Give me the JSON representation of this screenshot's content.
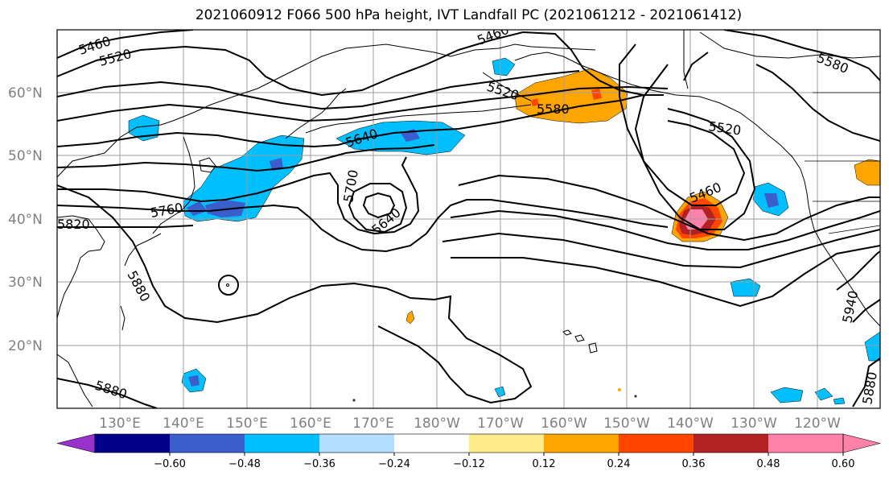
{
  "title": "2021060912 F066 500 hPa height, IVT Landfall PC (2021061212 - 2021061412)",
  "lat_labels": [
    "60°N",
    "50°N",
    "40°N",
    "30°N",
    "20°N"
  ],
  "lon_labels": [
    "130°E",
    "140°E",
    "150°E",
    "160°E",
    "170°E",
    "180°W",
    "170°W",
    "160°W",
    "150°W",
    "140°W",
    "130°W",
    "120°W"
  ],
  "contour_labels": [
    "5460",
    "5520",
    "5460",
    "5520",
    "5580",
    "5580",
    "5640",
    "5520",
    "5700",
    "5760",
    "5820",
    "5640",
    "5460",
    "5880",
    "5880",
    "5940",
    "5880"
  ],
  "colorbar": {
    "ticks": [
      "−0.60",
      "−0.48",
      "−0.36",
      "−0.24",
      "−0.12",
      "0.12",
      "0.24",
      "0.36",
      "0.48",
      "0.60"
    ],
    "colors": [
      "#9932cc",
      "#00008b",
      "#3a5fcd",
      "#00bfff",
      "#b2dfff",
      "#ffffff",
      "#ffec8b",
      "#ffa500",
      "#ff4500",
      "#b22222",
      "#ff82ab",
      "#ff82ab"
    ]
  }
}
